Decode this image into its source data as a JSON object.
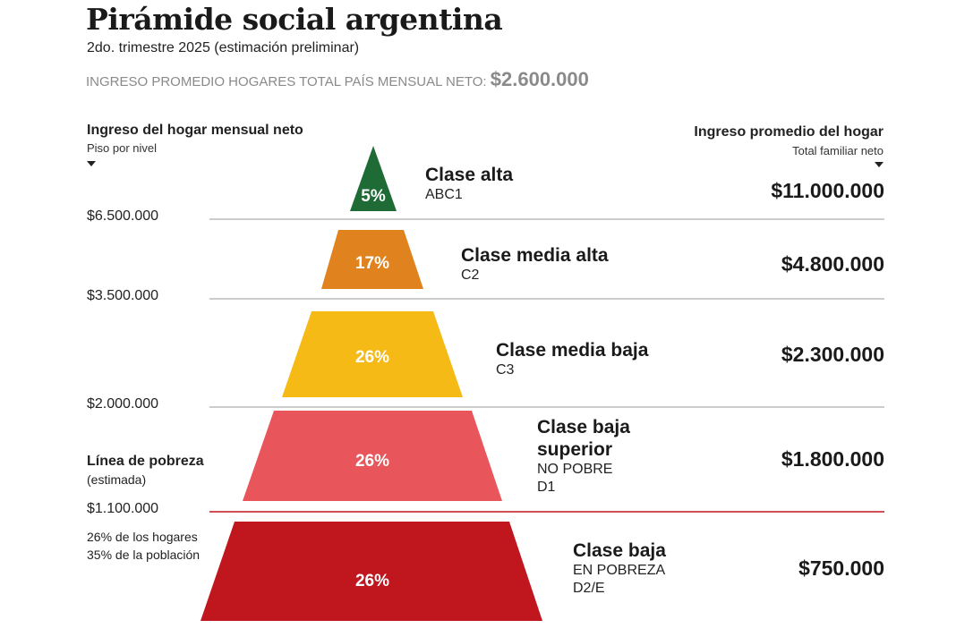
{
  "title": "Pirámide social argentina",
  "subtitle": "2do. trimestre 2025 (estimación preliminar)",
  "average": {
    "label": "INGRESO PROMEDIO HOGARES TOTAL PAÍS MENSUAL NETO:",
    "value": "$2.600.000"
  },
  "left_header": {
    "title": "Ingreso del hogar mensual neto",
    "subtitle": "Piso por nivel"
  },
  "right_header": {
    "title": "Ingreso promedio del hogar",
    "subtitle": "Total familiar neto"
  },
  "floors": [
    "$6.500.000",
    "$3.500.000",
    "$2.000.000",
    "$1.100.000"
  ],
  "poverty_line": {
    "label": "Línea de pobreza",
    "sub": "(estimada)"
  },
  "poverty_note": {
    "line1": "26% de los hogares",
    "line2": "35% de la población"
  },
  "classes": [
    {
      "name": "Clase alta",
      "code": "ABC1",
      "percent": "5%",
      "average": "$11.000.000",
      "color": "#1e6b35"
    },
    {
      "name": "Clase media alta",
      "code": "C2",
      "percent": "17%",
      "average": "$4.800.000",
      "color": "#e0821e"
    },
    {
      "name": "Clase media baja",
      "code": "C3",
      "percent": "26%",
      "average": "$2.300.000",
      "color": "#f5ba16"
    },
    {
      "name_line1": "Clase baja",
      "name_line2": "superior",
      "code1": "NO POBRE",
      "code2": "D1",
      "percent": "26%",
      "average": "$1.800.000",
      "color": "#e8555a"
    },
    {
      "name": "Clase baja",
      "code1": "EN POBREZA",
      "code2": "D2/E",
      "percent": "26%",
      "average": "$750.000",
      "color": "#c0171f"
    }
  ],
  "colors": {
    "grid_line": "#9a9a9a",
    "poverty_line": "#c0171f"
  }
}
